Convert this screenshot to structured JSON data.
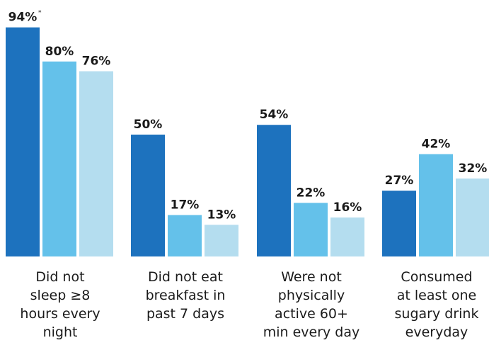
{
  "chart_data": {
    "type": "bar",
    "categories": [
      [
        "Did not",
        "sleep ≥8",
        "hours every",
        "night"
      ],
      [
        "Did not eat",
        "breakfast in",
        "past 7 days"
      ],
      [
        "Were not",
        "physically",
        "active 60+",
        "min every day"
      ],
      [
        "Consumed",
        "at least one",
        "sugary drink",
        "everyday"
      ]
    ],
    "series": [
      {
        "values": [
          94,
          50,
          54,
          27
        ],
        "labels": [
          "94%",
          "50%",
          "54%",
          "27%"
        ],
        "color": "#1d72be"
      },
      {
        "values": [
          80,
          17,
          22,
          42
        ],
        "labels": [
          "80%",
          "17%",
          "22%",
          "42%"
        ],
        "color": "#64c1ea"
      },
      {
        "values": [
          76,
          13,
          16,
          32
        ],
        "labels": [
          "76%",
          "13%",
          "16%",
          "32%"
        ],
        "color": "#b4ddef"
      }
    ],
    "annotations": [
      {
        "category_index": 0,
        "series_index": 0,
        "text": "*"
      }
    ],
    "ylim": [
      0,
      100
    ],
    "grid": false,
    "legend": "none",
    "title": "",
    "xlabel": "",
    "ylabel": ""
  }
}
